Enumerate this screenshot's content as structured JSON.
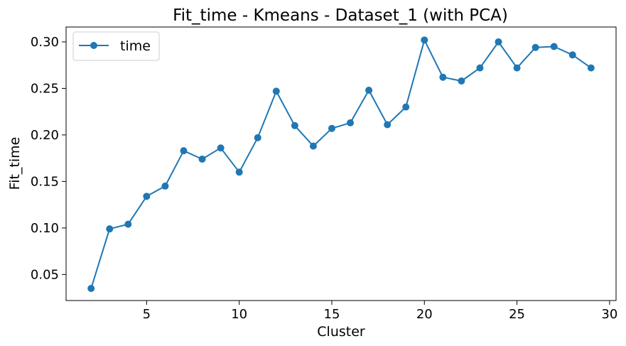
{
  "chart_data": {
    "type": "line",
    "title": "Fit_time - Kmeans - Dataset_1 (with PCA)",
    "xlabel": "Cluster",
    "ylabel": "Fit_time",
    "xlim": [
      0.65,
      30.35
    ],
    "ylim": [
      0.022,
      0.316
    ],
    "xticks": [
      5,
      10,
      15,
      20,
      25,
      30
    ],
    "yticks": [
      0.05,
      0.1,
      0.15,
      0.2,
      0.25,
      0.3
    ],
    "xtick_labels": [
      "5",
      "10",
      "15",
      "20",
      "25",
      "30"
    ],
    "ytick_labels": [
      "0.05",
      "0.10",
      "0.15",
      "0.20",
      "0.25",
      "0.30"
    ],
    "grid": false,
    "legend_position": "top-left",
    "color": "#1f77b4",
    "series": [
      {
        "name": "time",
        "x": [
          2,
          3,
          4,
          5,
          6,
          7,
          8,
          9,
          10,
          11,
          12,
          13,
          14,
          15,
          16,
          17,
          18,
          19,
          20,
          21,
          22,
          23,
          24,
          25,
          26,
          27,
          28,
          29
        ],
        "y": [
          0.035,
          0.099,
          0.104,
          0.134,
          0.145,
          0.183,
          0.174,
          0.186,
          0.16,
          0.197,
          0.247,
          0.21,
          0.188,
          0.207,
          0.213,
          0.248,
          0.211,
          0.23,
          0.302,
          0.262,
          0.258,
          0.272,
          0.3,
          0.272,
          0.294,
          0.295,
          0.286,
          0.272
        ]
      }
    ]
  }
}
